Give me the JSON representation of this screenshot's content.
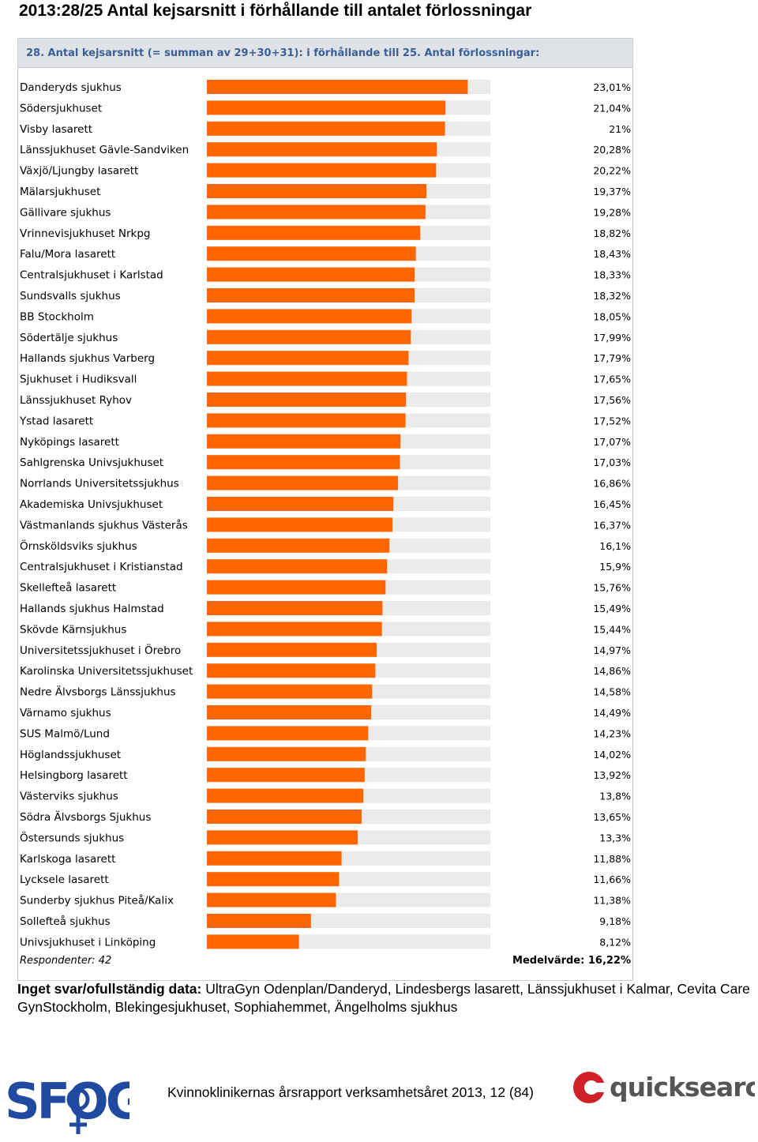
{
  "page": {
    "title": "2013:28/25 Antal kejsarsnitt i förhållande till antalet förlossningar",
    "missing_label": "Inget svar/ofullständig data:",
    "missing_text": "UltraGyn Odenplan/Danderyd, Lindesbergs lasarett, Länssjukhuset i Kalmar, Cevita Care GynStockholm, Blekingesjukhuset, Sophiahemmet, Ängelholms sjukhus",
    "footer_text": "Kvinnokliniker­nas årsrapport verksamhetsåret 2013, 12 (84)",
    "logo_left_text": "SFOG",
    "logo_right_text": "quicksearch"
  },
  "colors": {
    "bar": "#ff6600",
    "track": "#ebebeb",
    "header_bg": "#dfe3e8",
    "header_text": "#3a5f96"
  },
  "chart_data": {
    "type": "bar",
    "orientation": "horizontal",
    "title": "28. Antal kejsarsnitt (= summan av 29+30+31): i förhållande till 25. Antal förlossningar:",
    "xlim": [
      0,
      25
    ],
    "footer_left": "Respondenter: 42",
    "footer_right": "Medelvärde: 16,22%",
    "categories": [
      "Danderyds sjukhus",
      "Södersjukhuset",
      "Visby lasarett",
      "Länssjukhuset Gävle-Sandviken",
      "Växjö/Ljungby lasarett",
      "Mälarsjukhuset",
      "Gällivare sjukhus",
      "Vrinnevisjukhuset Nrkpg",
      "Falu/Mora lasarett",
      "Centralsjukhuset i Karlstad",
      "Sundsvalls sjukhus",
      "BB Stockholm",
      "Södertälje sjukhus",
      "Hallands sjukhus Varberg",
      "Sjukhuset i Hudiksvall",
      "Länssjukhuset Ryhov",
      "Ystad lasarett",
      "Nyköpings lasarett",
      "Sahlgrenska Univsjukhuset",
      "Norrlands Universitetssjukhus",
      "Akademiska Univsjukhuset",
      "Västmanlands sjukhus Västerås",
      "Örnsköldsviks sjukhus",
      "Centralsjukhuset i Kristianstad",
      "Skellefteå lasarett",
      "Hallands sjukhus Halmstad",
      "Skövde Kärnsjukhus",
      "Universitetssjukhuset i Örebro",
      "Karolinska Universitetssjukhuset",
      "Nedre Älvsborgs Länssjukhus",
      "Värnamo sjukhus",
      "SUS Malmö/Lund",
      "Höglandssjukhuset",
      "Helsingborg lasarett",
      "Västerviks sjukhus",
      "Södra Älvsborgs Sjukhus",
      "Östersunds sjukhus",
      "Karlskoga lasarett",
      "Lycksele lasarett",
      "Sunderby sjukhus Piteå/Kalix",
      "Sollefteå sjukhus",
      "Univsjukhuset i Linköping"
    ],
    "values": [
      23.01,
      21.04,
      21.0,
      20.28,
      20.22,
      19.37,
      19.28,
      18.82,
      18.43,
      18.33,
      18.32,
      18.05,
      17.99,
      17.79,
      17.65,
      17.56,
      17.52,
      17.07,
      17.03,
      16.86,
      16.45,
      16.37,
      16.1,
      15.9,
      15.76,
      15.49,
      15.44,
      14.97,
      14.86,
      14.58,
      14.49,
      14.23,
      14.02,
      13.92,
      13.8,
      13.65,
      13.3,
      11.88,
      11.66,
      11.38,
      9.18,
      8.12
    ],
    "value_labels": [
      "23,01%",
      "21,04%",
      "21%",
      "20,28%",
      "20,22%",
      "19,37%",
      "19,28%",
      "18,82%",
      "18,43%",
      "18,33%",
      "18,32%",
      "18,05%",
      "17,99%",
      "17,79%",
      "17,65%",
      "17,56%",
      "17,52%",
      "17,07%",
      "17,03%",
      "16,86%",
      "16,45%",
      "16,37%",
      "16,1%",
      "15,9%",
      "15,76%",
      "15,49%",
      "15,44%",
      "14,97%",
      "14,86%",
      "14,58%",
      "14,49%",
      "14,23%",
      "14,02%",
      "13,92%",
      "13,8%",
      "13,65%",
      "13,3%",
      "11,88%",
      "11,66%",
      "11,38%",
      "9,18%",
      "8,12%"
    ]
  }
}
